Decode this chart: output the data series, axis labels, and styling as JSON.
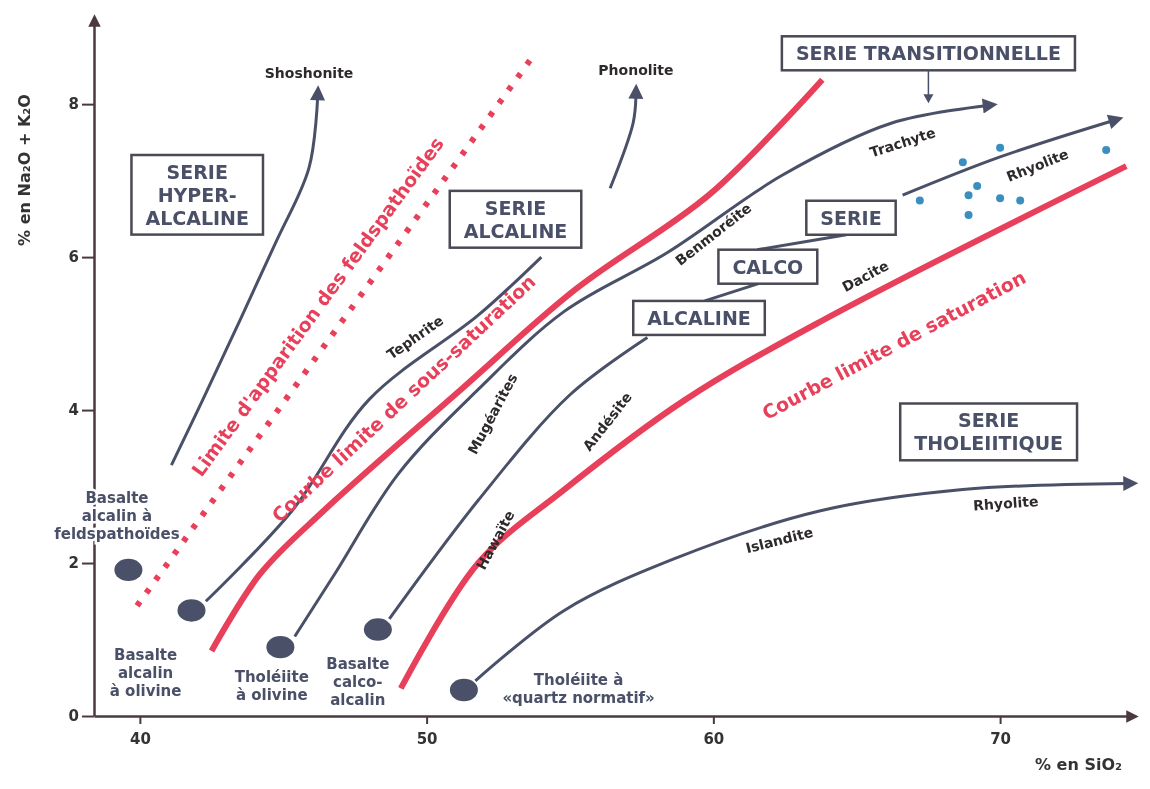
{
  "chart_data": {
    "type": "line",
    "xlabel": "% en SiO₂",
    "ylabel": "% en Na₂O + K₂O",
    "xlim": [
      38.4,
      74.6
    ],
    "ylim": [
      0,
      9.1
    ],
    "xticks": [
      40,
      50,
      60,
      70
    ],
    "yticks": [
      0,
      2,
      4,
      6,
      8
    ],
    "grid": false,
    "marker": "none",
    "line_style": "solid",
    "series": [
      {
        "color": "#4a5068",
        "x": [
          41.1,
          42.2,
          44.7,
          45.9,
          46.2
        ],
        "values": [
          3.28,
          4.14,
          6.16,
          7.17,
          8.09
        ]
      },
      {
        "color": "#4a5068",
        "x": [
          42.3,
          45.3,
          48.0,
          51.8,
          54.0
        ],
        "values": [
          1.5,
          2.68,
          4.14,
          5.24,
          6.0
        ]
      },
      {
        "color": "#4a5068",
        "x": [
          56.4,
          57.2,
          57.3
        ],
        "values": [
          6.9,
          7.75,
          8.11
        ]
      },
      {
        "color": "#4a5068",
        "x": [
          45.4,
          46.8,
          49.0,
          51.8,
          54.8,
          58.4,
          62.4,
          66.2,
          69.5
        ],
        "values": [
          1.04,
          1.86,
          3.16,
          4.27,
          5.29,
          6.06,
          7.07,
          7.75,
          7.98
        ]
      },
      {
        "color": "#4a5068",
        "x": [
          48.7,
          51.8,
          55.0,
          57.7
        ],
        "values": [
          1.27,
          2.82,
          4.2,
          4.95
        ]
      },
      {
        "color": "#4a5068",
        "x": [
          66.6,
          70.0,
          73.9
        ],
        "values": [
          6.81,
          7.31,
          7.78
        ]
      },
      {
        "color": "#4a5068",
        "x": [
          51.7,
          54.8,
          58.6,
          63.7,
          68.7,
          74.4
        ],
        "values": [
          0.46,
          1.38,
          2.05,
          2.68,
          2.96,
          3.04
        ]
      },
      {
        "color": "#e8405a",
        "x": [
          42.5,
          44.2,
          46.4,
          51.2,
          55.2,
          59.9,
          63.8
        ],
        "values": [
          0.85,
          1.86,
          2.68,
          4.27,
          5.58,
          6.83,
          8.32
        ]
      },
      {
        "color": "#e8405a",
        "x": [
          49.1,
          51.8,
          54.8,
          59.0,
          63.7,
          74.4
        ],
        "values": [
          0.36,
          2.0,
          2.96,
          4.13,
          5.15,
          7.19
        ]
      },
      {
        "color": "#e8405a",
        "line_style": "dotted",
        "x": [
          39.9,
          53.6
        ],
        "values": [
          1.44,
          8.57
        ]
      },
      {
        "type": "scatter",
        "marker": "circle",
        "color": "#4a5068",
        "x": [
          39.6,
          41.8,
          44.9,
          48.3,
          51.3
        ],
        "values": [
          1.91,
          1.38,
          0.9,
          1.13,
          0.34
        ]
      },
      {
        "type": "scatter",
        "marker": "circle",
        "color": "#3a8fc0",
        "x": [
          67.2,
          68.7,
          70.0,
          69.2,
          68.9,
          68.9,
          70.0,
          70.7,
          73.7
        ],
        "values": [
          6.74,
          7.24,
          7.43,
          6.93,
          6.81,
          6.55,
          6.77,
          6.74,
          7.4
        ]
      }
    ],
    "annotations": [
      "Shoshonite",
      "Phonolite",
      "SERIE TRANSITIONNELLE",
      "SERIE\nHYPER-\nALCALINE",
      "SERIE\nALCALINE",
      "SERIE",
      "CALCO",
      "ALCALINE",
      "SERIE\nTHOLEIITIQUE",
      "Tephrite",
      "Mugéarites",
      "Benmoréite",
      "Trachyte",
      "Rhyolite",
      "Dacite",
      "Andésite",
      "Hawaïte",
      "Islandite",
      "Rhyolite",
      "Limite d'apparition des feldspathoïdes",
      "Courbe limite de sous-saturation",
      "Courbe limite de saturation",
      "Basalte\nalcalin à\nfeldspathoïdes",
      "Basalte\nalcalin\nà olivine",
      "Tholéiite\nà olivine",
      "Basalte\ncalco-\nalcalin",
      "Tholéiite à\n«quartz normatif»"
    ]
  }
}
